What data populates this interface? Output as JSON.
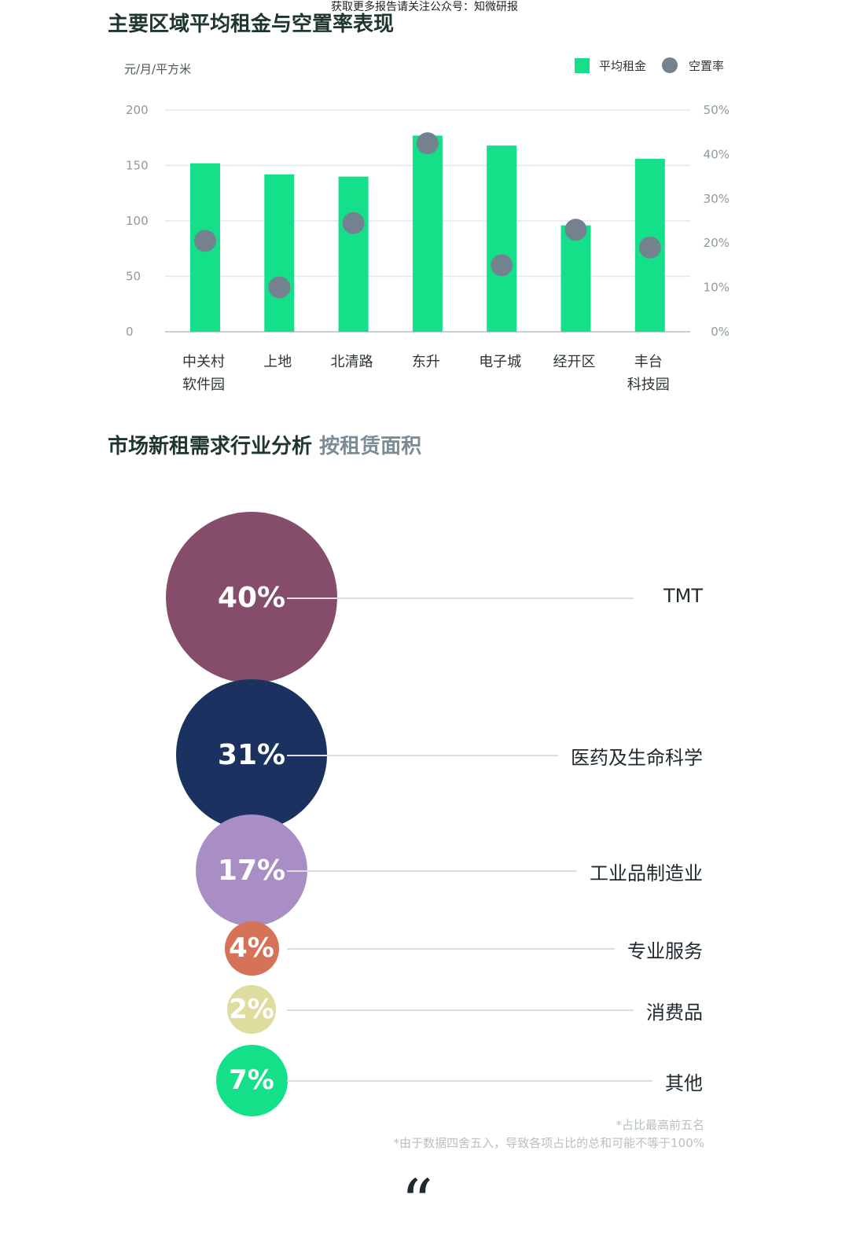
{
  "watermark": "获取更多报告请关注公众号：知微研报",
  "section1": {
    "title": "主要区域平均租金与空置率表现"
  },
  "section2": {
    "title": "市场新租需求行业分析",
    "subtitle": "按租赁面积"
  },
  "colors": {
    "bar": "#14e08a",
    "dot": "#73828e",
    "grid": "#e3e7e8",
    "axis": "#8e9aa0"
  },
  "chart_data": [
    {
      "type": "bar",
      "y_unit_label": "元/月/平方米",
      "categories": [
        [
          "中关村",
          "软件园"
        ],
        [
          "上地"
        ],
        [
          "北清路"
        ],
        [
          "东升"
        ],
        [
          "电子城"
        ],
        [
          "经开区"
        ],
        [
          "丰台",
          "科技园"
        ]
      ],
      "ylim": [
        0,
        200
      ],
      "yticks": [
        "0",
        "50",
        "100",
        "150",
        "200"
      ],
      "y2lim": [
        0,
        50
      ],
      "y2ticks": [
        "0%",
        "10%",
        "20%",
        "30%",
        "40%",
        "50%"
      ],
      "legend_position": "top-right",
      "grid": true,
      "series": [
        {
          "name": "平均租金",
          "kind": "bar",
          "axis": "left",
          "values": [
            152,
            142,
            140,
            177,
            168,
            96,
            156
          ]
        },
        {
          "name": "空置率",
          "kind": "dot",
          "axis": "right",
          "values": [
            20.5,
            10,
            24.5,
            42.5,
            15,
            23,
            19
          ]
        }
      ]
    },
    {
      "type": "bubble",
      "items": [
        {
          "pct": "40%",
          "label": "TMT",
          "value": 40,
          "color": "#864d6b"
        },
        {
          "pct": "31%",
          "label": "医药及生命科学",
          "value": 31,
          "color": "#1b3260"
        },
        {
          "pct": "17%",
          "label": "工业品制造业",
          "value": 17,
          "color": "#a98ec6"
        },
        {
          "pct": "4%",
          "label": "专业服务",
          "value": 4,
          "color": "#d57257"
        },
        {
          "pct": "2%",
          "label": "消费品",
          "value": 2,
          "color": "#dedd9e"
        },
        {
          "pct": "7%",
          "label": "其他",
          "value": 7,
          "color": "#14e08a"
        }
      ]
    }
  ],
  "notes": [
    "*占比最高前五名",
    "*由于数据四舍五入，导致各项占比的总和可能不等于100%"
  ],
  "quote_mark": "“"
}
